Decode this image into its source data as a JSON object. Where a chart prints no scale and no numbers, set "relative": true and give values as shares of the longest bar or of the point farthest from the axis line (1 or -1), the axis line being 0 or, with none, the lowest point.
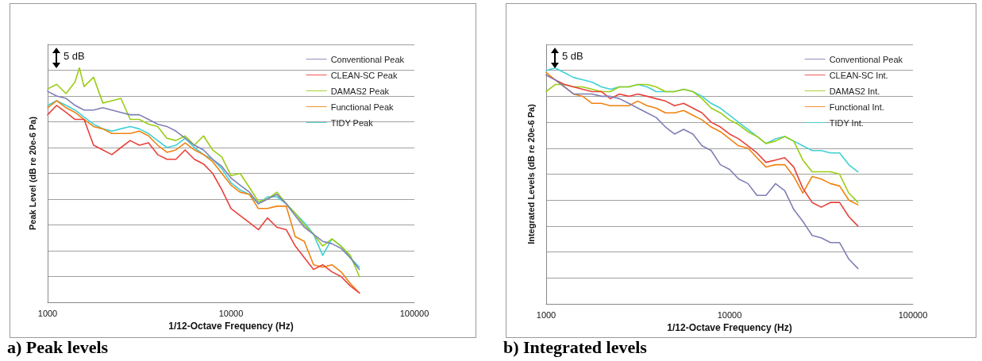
{
  "chart_data": [
    {
      "type": "line",
      "title": "a) Peak levels",
      "xlabel": "1/12-Octave Frequency (Hz)",
      "ylabel": "Peak Level (dB re 20e-6 Pa)",
      "annotations": [
        "5 dB"
      ],
      "relative": true,
      "log": "x",
      "xlim": [
        1000,
        100000
      ],
      "xticks": [
        1000,
        10000,
        100000
      ],
      "grid": "y",
      "legend": "top right",
      "x": [
        1000,
        1120,
        1260,
        1410,
        1580,
        1780,
        2000,
        2240,
        2510,
        2820,
        3160,
        3550,
        3980,
        4470,
        5010,
        5620,
        6310,
        7080,
        7940,
        8910,
        10000,
        11200,
        12600,
        14100,
        15800,
        17800,
        20000,
        22400,
        25100,
        28200,
        31600,
        35500,
        39800,
        44700,
        50100
      ],
      "series": [
        {
          "name": "Conventional Peak",
          "color": "#7f7fb5",
          "values": [
            0.9,
            0.88,
            0.87,
            0.84,
            0.82,
            0.82,
            0.83,
            0.82,
            0.81,
            0.8,
            0.8,
            0.78,
            0.76,
            0.75,
            0.73,
            0.7,
            0.67,
            0.65,
            0.61,
            0.58,
            0.53,
            0.5,
            0.47,
            0.42,
            0.44,
            0.46,
            0.42,
            0.37,
            0.32,
            0.29,
            0.26,
            0.25,
            0.23,
            0.19,
            0.14
          ]
        },
        {
          "name": "CLEAN-SC Peak",
          "color": "#e8413b",
          "values": [
            0.8,
            0.84,
            0.81,
            0.78,
            0.78,
            0.67,
            0.65,
            0.63,
            0.66,
            0.69,
            0.67,
            0.68,
            0.63,
            0.61,
            0.61,
            0.65,
            0.61,
            0.59,
            0.55,
            0.48,
            0.4,
            0.37,
            0.34,
            0.31,
            0.36,
            0.32,
            0.31,
            0.24,
            0.19,
            0.14,
            0.16,
            0.13,
            0.11,
            0.07,
            0.04
          ]
        },
        {
          "name": "DAMAS2 Peak",
          "color": "#9acd15",
          "x": [
            1000,
            1120,
            1260,
            1410,
            1490,
            1580,
            1780,
            2000,
            2240,
            2510,
            2820,
            3160,
            3550,
            3980,
            4470,
            5010,
            5620,
            6310,
            7080,
            7940,
            8910,
            10000,
            11200,
            12600,
            14100,
            15800,
            17800,
            20000,
            22400,
            25100,
            28200,
            31600,
            35500,
            39800,
            44700,
            50100
          ],
          "values": [
            0.91,
            0.93,
            0.89,
            0.94,
            1.0,
            0.92,
            0.96,
            0.85,
            0.86,
            0.87,
            0.78,
            0.78,
            0.76,
            0.75,
            0.7,
            0.69,
            0.71,
            0.67,
            0.71,
            0.65,
            0.62,
            0.54,
            0.55,
            0.49,
            0.43,
            0.44,
            0.47,
            0.42,
            0.38,
            0.33,
            0.29,
            0.24,
            0.27,
            0.24,
            0.2,
            0.11
          ]
        },
        {
          "name": "Functional Peak",
          "color": "#f0820f",
          "values": [
            0.83,
            0.86,
            0.83,
            0.81,
            0.78,
            0.75,
            0.74,
            0.72,
            0.72,
            0.72,
            0.73,
            0.71,
            0.67,
            0.64,
            0.65,
            0.68,
            0.65,
            0.63,
            0.6,
            0.55,
            0.5,
            0.47,
            0.46,
            0.4,
            0.4,
            0.41,
            0.41,
            0.28,
            0.26,
            0.16,
            0.15,
            0.16,
            0.13,
            0.08,
            0.04
          ]
        },
        {
          "name": "TIDY Peak",
          "color": "#3fd1d6",
          "values": [
            0.84,
            0.86,
            0.84,
            0.82,
            0.79,
            0.76,
            0.74,
            0.73,
            0.74,
            0.75,
            0.74,
            0.72,
            0.69,
            0.66,
            0.67,
            0.7,
            0.66,
            0.63,
            0.61,
            0.57,
            0.51,
            0.48,
            0.46,
            0.42,
            0.45,
            0.45,
            0.42,
            0.38,
            0.34,
            0.29,
            0.2,
            0.27,
            0.24,
            0.19,
            0.15
          ]
        }
      ]
    },
    {
      "type": "line",
      "title": "b) Integrated levels",
      "xlabel": "1/12-Octave Frequency (Hz)",
      "ylabel": "Integrated Levels (dB re 20e-6 Pa)",
      "annotations": [
        "5 dB"
      ],
      "relative": true,
      "log": "x",
      "xlim": [
        1000,
        100000
      ],
      "xticks": [
        1000,
        10000,
        100000
      ],
      "grid": "y",
      "legend": "top right",
      "x": [
        1000,
        1120,
        1260,
        1410,
        1580,
        1780,
        2000,
        2240,
        2510,
        2820,
        3160,
        3550,
        3980,
        4470,
        5010,
        5620,
        6310,
        7080,
        7940,
        8910,
        10000,
        11200,
        12600,
        14100,
        15800,
        17800,
        20000,
        22400,
        25100,
        28200,
        31600,
        35500,
        39800,
        44700,
        50100
      ],
      "series": [
        {
          "name": "Conventional Peak",
          "color": "#7f7fb5",
          "values": [
            0.97,
            0.95,
            0.92,
            0.89,
            0.89,
            0.89,
            0.88,
            0.88,
            0.87,
            0.85,
            0.83,
            0.81,
            0.79,
            0.75,
            0.72,
            0.74,
            0.72,
            0.67,
            0.65,
            0.59,
            0.57,
            0.53,
            0.51,
            0.46,
            0.46,
            0.51,
            0.48,
            0.4,
            0.35,
            0.29,
            0.28,
            0.26,
            0.26,
            0.19,
            0.15
          ]
        },
        {
          "name": "CLEAN-SC Int.",
          "color": "#e8413b",
          "values": [
            0.97,
            0.95,
            0.93,
            0.92,
            0.91,
            0.9,
            0.9,
            0.87,
            0.89,
            0.88,
            0.89,
            0.88,
            0.87,
            0.86,
            0.84,
            0.85,
            0.83,
            0.81,
            0.77,
            0.75,
            0.72,
            0.7,
            0.67,
            0.64,
            0.6,
            0.61,
            0.62,
            0.58,
            0.49,
            0.43,
            0.41,
            0.43,
            0.43,
            0.37,
            0.33
          ]
        },
        {
          "name": "DAMAS2 Int.",
          "color": "#9acd15",
          "values": [
            0.9,
            0.93,
            0.93,
            0.92,
            0.92,
            0.91,
            0.9,
            0.9,
            0.92,
            0.92,
            0.93,
            0.93,
            0.92,
            0.9,
            0.9,
            0.91,
            0.9,
            0.87,
            0.83,
            0.81,
            0.78,
            0.76,
            0.73,
            0.71,
            0.68,
            0.69,
            0.71,
            0.69,
            0.61,
            0.56,
            0.56,
            0.56,
            0.55,
            0.47,
            0.43
          ]
        },
        {
          "name": "Functional Int.",
          "color": "#f0820f",
          "values": [
            0.98,
            0.95,
            0.92,
            0.89,
            0.88,
            0.85,
            0.85,
            0.84,
            0.84,
            0.84,
            0.86,
            0.84,
            0.83,
            0.81,
            0.81,
            0.82,
            0.8,
            0.78,
            0.75,
            0.73,
            0.7,
            0.67,
            0.66,
            0.62,
            0.58,
            0.59,
            0.59,
            0.54,
            0.47,
            0.54,
            0.53,
            0.51,
            0.5,
            0.44,
            0.42
          ]
        },
        {
          "name": "TIDY Int.",
          "color": "#3fd1d6",
          "values": [
            0.99,
            1.0,
            0.98,
            0.96,
            0.95,
            0.94,
            0.92,
            0.91,
            0.92,
            0.92,
            0.93,
            0.92,
            0.9,
            0.9,
            0.9,
            0.91,
            0.9,
            0.88,
            0.85,
            0.83,
            0.8,
            0.77,
            0.74,
            0.71,
            0.68,
            0.7,
            0.71,
            0.69,
            0.67,
            0.65,
            0.65,
            0.64,
            0.64,
            0.59,
            0.56
          ]
        }
      ]
    }
  ]
}
